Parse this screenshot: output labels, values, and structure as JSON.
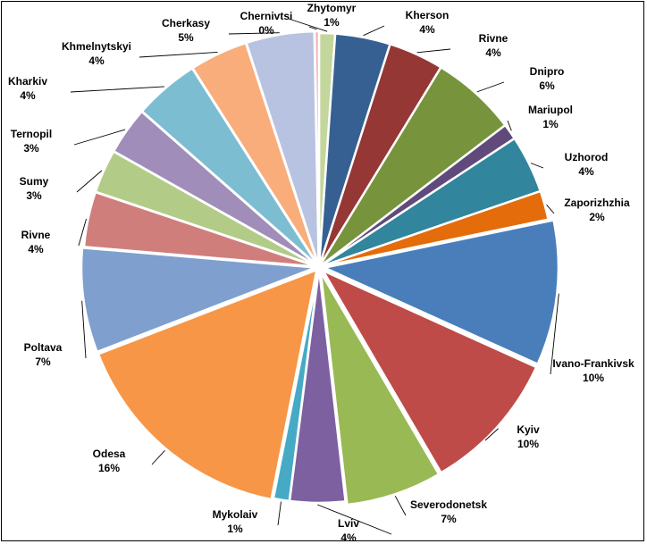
{
  "chart_data": {
    "type": "pie",
    "title": "",
    "slices": [
      {
        "label": "Zhytomyr",
        "percent_label": "1%",
        "value": 1.1,
        "color": "#c3d69b"
      },
      {
        "label": "Kherson",
        "percent_label": "4%",
        "value": 3.8,
        "color": "#376092"
      },
      {
        "label": "Rivne",
        "percent_label": "4%",
        "value": 3.8,
        "color": "#953735"
      },
      {
        "label": "Dnipro",
        "percent_label": "6%",
        "value": 5.9,
        "color": "#77933c"
      },
      {
        "label": "Mariupol",
        "percent_label": "1%",
        "value": 1.1,
        "color": "#604a7b"
      },
      {
        "label": "Uzhorod",
        "percent_label": "4%",
        "value": 4.0,
        "color": "#31859c"
      },
      {
        "label": "Zaporizhzhia",
        "percent_label": "2%",
        "value": 2.0,
        "color": "#e46c0a"
      },
      {
        "label": "Ivano-Frankivsk",
        "percent_label": "10%",
        "value": 10.0,
        "color": "#4a7ebb"
      },
      {
        "label": "Kyiv",
        "percent_label": "10%",
        "value": 9.8,
        "color": "#be4b48"
      },
      {
        "label": "Severodonetsk",
        "percent_label": "7%",
        "value": 6.6,
        "color": "#98b954"
      },
      {
        "label": "Lviv",
        "percent_label": "4%",
        "value": 3.8,
        "color": "#7d60a0"
      },
      {
        "label": "Mykolaiv",
        "percent_label": "1%",
        "value": 1.1,
        "color": "#46aac5"
      },
      {
        "label": "Odesa",
        "percent_label": "16%",
        "value": 16.0,
        "color": "#f79646"
      },
      {
        "label": "Poltava",
        "percent_label": "7%",
        "value": 7.2,
        "color": "#7f9fcf"
      },
      {
        "label": "Rivne",
        "percent_label": "4%",
        "value": 3.8,
        "color": "#d07e7c"
      },
      {
        "label": "Sumy",
        "percent_label": "3%",
        "value": 3.0,
        "color": "#b2cc88"
      },
      {
        "label": "Ternopil",
        "percent_label": "3%",
        "value": 3.3,
        "color": "#a08dba"
      },
      {
        "label": "Kharkiv",
        "percent_label": "4%",
        "value": 4.5,
        "color": "#7dbdd2"
      },
      {
        "label": "Khmelnytskyi",
        "percent_label": "4%",
        "value": 4.0,
        "color": "#f9ad7a"
      },
      {
        "label": "Cherkasy",
        "percent_label": "5%",
        "value": 4.7,
        "color": "#b7c3e0"
      },
      {
        "label": "Chernivtsi",
        "percent_label": "0%",
        "value": 0.3,
        "color": "#f2b6b6"
      }
    ],
    "legend": "none",
    "labels": "outside with leader lines"
  }
}
